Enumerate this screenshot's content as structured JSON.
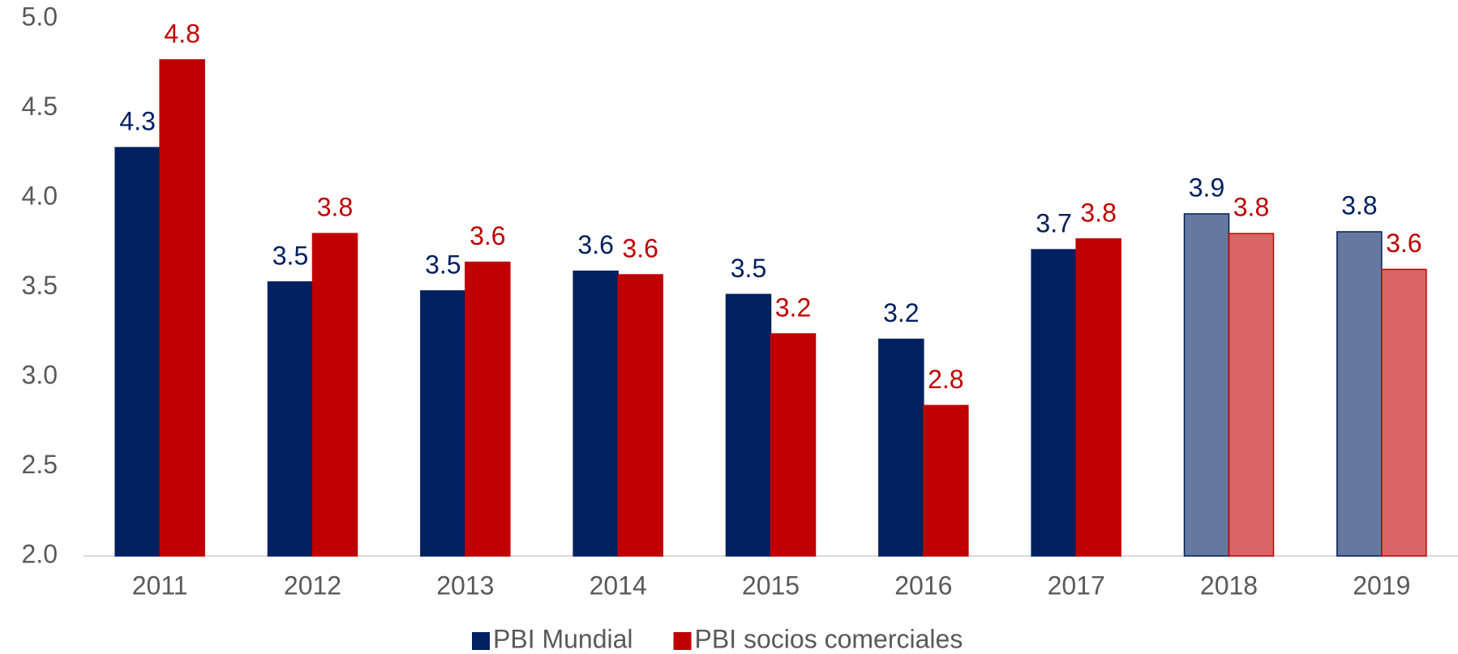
{
  "chart_data": {
    "type": "bar",
    "categories": [
      "2011",
      "2012",
      "2013",
      "2014",
      "2015",
      "2016",
      "2017",
      "2018",
      "2019"
    ],
    "series": [
      {
        "name": "PBI Mundial",
        "color": "#002060",
        "colors": [
          "#002060",
          "#002060",
          "#002060",
          "#002060",
          "#002060",
          "#002060",
          "#002060",
          "#66789e",
          "#66789e"
        ],
        "values": [
          4.28,
          3.53,
          3.48,
          3.59,
          3.46,
          3.21,
          3.71,
          3.91,
          3.81
        ],
        "value_labels": [
          "4.3",
          "3.5",
          "3.5",
          "3.6",
          "3.5",
          "3.2",
          "3.7",
          "3.9",
          "3.8"
        ]
      },
      {
        "name": "PBI socios comerciales",
        "color": "#c00000",
        "colors": [
          "#c00000",
          "#c00000",
          "#c00000",
          "#c00000",
          "#c00000",
          "#c00000",
          "#c00000",
          "#d96666",
          "#d96666"
        ],
        "values": [
          4.77,
          3.8,
          3.64,
          3.57,
          3.24,
          2.84,
          3.77,
          3.8,
          3.6
        ],
        "value_labels": [
          "4.8",
          "3.8",
          "3.6",
          "3.6",
          "3.2",
          "2.8",
          "3.8",
          "3.8",
          "3.6"
        ]
      }
    ],
    "ylim": [
      2,
      5
    ],
    "yticks": [
      {
        "value": 2,
        "label": "2.0"
      },
      {
        "value": 2.5,
        "label": "2.5"
      },
      {
        "value": 3,
        "label": "3.0"
      },
      {
        "value": 3.5,
        "label": "3.5"
      },
      {
        "value": 4,
        "label": "4.0"
      },
      {
        "value": 4.5,
        "label": "4.5"
      },
      {
        "value": 5,
        "label": "5.0"
      }
    ],
    "grid": false,
    "legend": "bottom"
  }
}
